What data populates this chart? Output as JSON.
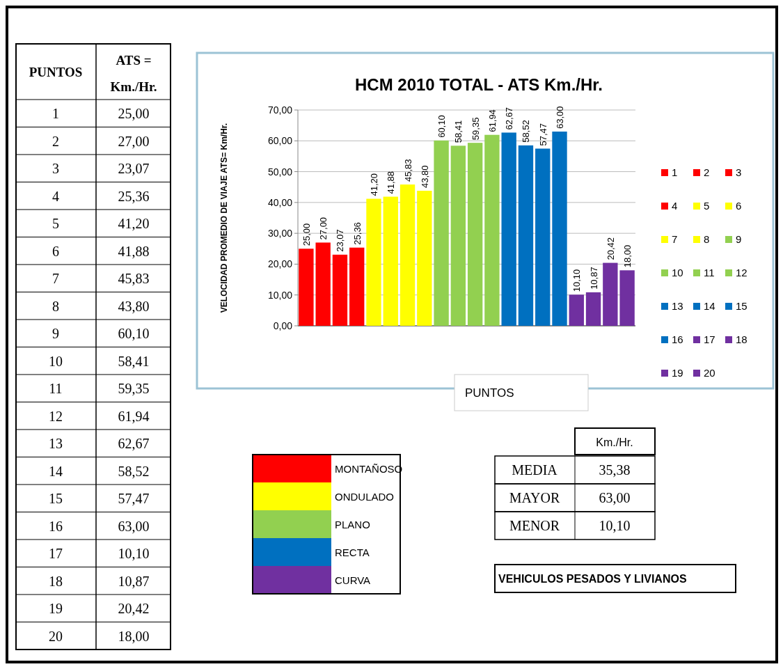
{
  "chart_data": {
    "type": "bar",
    "title": "HCM 2010  TOTAL - ATS  Km./Hr.",
    "xlabel": "PUNTOS",
    "ylabel": "VELOCIDAD PROMEDIO DE VIAJE ATS= Km/Hr.",
    "categories": [
      null,
      null,
      null,
      null,
      null,
      null,
      null,
      null,
      null,
      null,
      null,
      null,
      null,
      null,
      null,
      null,
      null,
      null,
      null,
      null
    ],
    "series": [
      {
        "name": "1",
        "color": "#ff0000",
        "values": [
          25,
          null,
          null,
          null,
          null,
          null,
          null,
          null,
          null,
          null,
          null,
          null,
          null,
          null,
          null,
          null,
          null,
          null,
          null,
          null
        ],
        "value_labels": [
          "25,00",
          null,
          null,
          null,
          null,
          null,
          null,
          null,
          null,
          null,
          null,
          null,
          null,
          null,
          null,
          null,
          null,
          null,
          null,
          null
        ]
      },
      {
        "name": "2",
        "color": "#ff0000",
        "values": [
          null,
          27,
          null,
          null,
          null,
          null,
          null,
          null,
          null,
          null,
          null,
          null,
          null,
          null,
          null,
          null,
          null,
          null,
          null,
          null
        ],
        "value_labels": [
          null,
          "27,00",
          null,
          null,
          null,
          null,
          null,
          null,
          null,
          null,
          null,
          null,
          null,
          null,
          null,
          null,
          null,
          null,
          null,
          null
        ]
      },
      {
        "name": "3",
        "color": "#ff0000",
        "values": [
          null,
          null,
          23.07,
          null,
          null,
          null,
          null,
          null,
          null,
          null,
          null,
          null,
          null,
          null,
          null,
          null,
          null,
          null,
          null,
          null
        ],
        "value_labels": [
          null,
          null,
          "23,07",
          null,
          null,
          null,
          null,
          null,
          null,
          null,
          null,
          null,
          null,
          null,
          null,
          null,
          null,
          null,
          null,
          null
        ]
      },
      {
        "name": "4",
        "color": "#ff0000",
        "values": [
          null,
          null,
          null,
          25.36,
          null,
          null,
          null,
          null,
          null,
          null,
          null,
          null,
          null,
          null,
          null,
          null,
          null,
          null,
          null,
          null
        ],
        "value_labels": [
          null,
          null,
          null,
          "25,36",
          null,
          null,
          null,
          null,
          null,
          null,
          null,
          null,
          null,
          null,
          null,
          null,
          null,
          null,
          null,
          null
        ]
      },
      {
        "name": "5",
        "color": "#ffff00",
        "values": [
          null,
          null,
          null,
          null,
          41.2,
          null,
          null,
          null,
          null,
          null,
          null,
          null,
          null,
          null,
          null,
          null,
          null,
          null,
          null,
          null
        ],
        "value_labels": [
          null,
          null,
          null,
          null,
          "41,20",
          null,
          null,
          null,
          null,
          null,
          null,
          null,
          null,
          null,
          null,
          null,
          null,
          null,
          null,
          null
        ]
      },
      {
        "name": "6",
        "color": "#ffff00",
        "values": [
          null,
          null,
          null,
          null,
          null,
          41.88,
          null,
          null,
          null,
          null,
          null,
          null,
          null,
          null,
          null,
          null,
          null,
          null,
          null,
          null
        ],
        "value_labels": [
          null,
          null,
          null,
          null,
          null,
          "41,88",
          null,
          null,
          null,
          null,
          null,
          null,
          null,
          null,
          null,
          null,
          null,
          null,
          null,
          null
        ]
      },
      {
        "name": "7",
        "color": "#ffff00",
        "values": [
          null,
          null,
          null,
          null,
          null,
          null,
          45.83,
          null,
          null,
          null,
          null,
          null,
          null,
          null,
          null,
          null,
          null,
          null,
          null,
          null
        ],
        "value_labels": [
          null,
          null,
          null,
          null,
          null,
          null,
          "45,83",
          null,
          null,
          null,
          null,
          null,
          null,
          null,
          null,
          null,
          null,
          null,
          null,
          null
        ]
      },
      {
        "name": "8",
        "color": "#ffff00",
        "values": [
          null,
          null,
          null,
          null,
          null,
          null,
          null,
          43.8,
          null,
          null,
          null,
          null,
          null,
          null,
          null,
          null,
          null,
          null,
          null,
          null
        ],
        "value_labels": [
          null,
          null,
          null,
          null,
          null,
          null,
          null,
          "43,80",
          null,
          null,
          null,
          null,
          null,
          null,
          null,
          null,
          null,
          null,
          null,
          null
        ]
      },
      {
        "name": "9",
        "color": "#92d050",
        "values": [
          null,
          null,
          null,
          null,
          null,
          null,
          null,
          null,
          60.1,
          null,
          null,
          null,
          null,
          null,
          null,
          null,
          null,
          null,
          null,
          null
        ],
        "value_labels": [
          null,
          null,
          null,
          null,
          null,
          null,
          null,
          null,
          "60,10",
          null,
          null,
          null,
          null,
          null,
          null,
          null,
          null,
          null,
          null,
          null
        ]
      },
      {
        "name": "10",
        "color": "#92d050",
        "values": [
          null,
          null,
          null,
          null,
          null,
          null,
          null,
          null,
          null,
          58.41,
          null,
          null,
          null,
          null,
          null,
          null,
          null,
          null,
          null,
          null
        ],
        "value_labels": [
          null,
          null,
          null,
          null,
          null,
          null,
          null,
          null,
          null,
          "58,41",
          null,
          null,
          null,
          null,
          null,
          null,
          null,
          null,
          null,
          null
        ]
      },
      {
        "name": "11",
        "color": "#92d050",
        "values": [
          null,
          null,
          null,
          null,
          null,
          null,
          null,
          null,
          null,
          null,
          59.35,
          null,
          null,
          null,
          null,
          null,
          null,
          null,
          null,
          null
        ],
        "value_labels": [
          null,
          null,
          null,
          null,
          null,
          null,
          null,
          null,
          null,
          null,
          "59,35",
          null,
          null,
          null,
          null,
          null,
          null,
          null,
          null,
          null
        ]
      },
      {
        "name": "12",
        "color": "#92d050",
        "values": [
          null,
          null,
          null,
          null,
          null,
          null,
          null,
          null,
          null,
          null,
          null,
          61.94,
          null,
          null,
          null,
          null,
          null,
          null,
          null,
          null
        ],
        "value_labels": [
          null,
          null,
          null,
          null,
          null,
          null,
          null,
          null,
          null,
          null,
          null,
          "61,94",
          null,
          null,
          null,
          null,
          null,
          null,
          null,
          null
        ]
      },
      {
        "name": "13",
        "color": "#0070c0",
        "values": [
          null,
          null,
          null,
          null,
          null,
          null,
          null,
          null,
          null,
          null,
          null,
          null,
          62.67,
          null,
          null,
          null,
          null,
          null,
          null,
          null
        ],
        "value_labels": [
          null,
          null,
          null,
          null,
          null,
          null,
          null,
          null,
          null,
          null,
          null,
          null,
          "62,67",
          null,
          null,
          null,
          null,
          null,
          null,
          null
        ]
      },
      {
        "name": "14",
        "color": "#0070c0",
        "values": [
          null,
          null,
          null,
          null,
          null,
          null,
          null,
          null,
          null,
          null,
          null,
          null,
          null,
          58.52,
          null,
          null,
          null,
          null,
          null,
          null
        ],
        "value_labels": [
          null,
          null,
          null,
          null,
          null,
          null,
          null,
          null,
          null,
          null,
          null,
          null,
          null,
          "58,52",
          null,
          null,
          null,
          null,
          null,
          null
        ]
      },
      {
        "name": "15",
        "color": "#0070c0",
        "values": [
          null,
          null,
          null,
          null,
          null,
          null,
          null,
          null,
          null,
          null,
          null,
          null,
          null,
          null,
          57.47,
          null,
          null,
          null,
          null,
          null
        ],
        "value_labels": [
          null,
          null,
          null,
          null,
          null,
          null,
          null,
          null,
          null,
          null,
          null,
          null,
          null,
          null,
          "57,47",
          null,
          null,
          null,
          null,
          null
        ]
      },
      {
        "name": "16",
        "color": "#0070c0",
        "values": [
          null,
          null,
          null,
          null,
          null,
          null,
          null,
          null,
          null,
          null,
          null,
          null,
          null,
          null,
          null,
          63,
          null,
          null,
          null,
          null
        ],
        "value_labels": [
          null,
          null,
          null,
          null,
          null,
          null,
          null,
          null,
          null,
          null,
          null,
          null,
          null,
          null,
          null,
          "63,00",
          null,
          null,
          null,
          null
        ]
      },
      {
        "name": "17",
        "color": "#7030a0",
        "values": [
          null,
          null,
          null,
          null,
          null,
          null,
          null,
          null,
          null,
          null,
          null,
          null,
          null,
          null,
          null,
          null,
          10.1,
          null,
          null,
          null
        ],
        "value_labels": [
          null,
          null,
          null,
          null,
          null,
          null,
          null,
          null,
          null,
          null,
          null,
          null,
          null,
          null,
          null,
          null,
          "10,10",
          null,
          null,
          null
        ]
      },
      {
        "name": "18",
        "color": "#7030a0",
        "values": [
          null,
          null,
          null,
          null,
          null,
          null,
          null,
          null,
          null,
          null,
          null,
          null,
          null,
          null,
          null,
          null,
          null,
          10.87,
          null,
          null
        ],
        "value_labels": [
          null,
          null,
          null,
          null,
          null,
          null,
          null,
          null,
          null,
          null,
          null,
          null,
          null,
          null,
          null,
          null,
          null,
          "10,87",
          null,
          null
        ]
      },
      {
        "name": "19",
        "color": "#7030a0",
        "values": [
          null,
          null,
          null,
          null,
          null,
          null,
          null,
          null,
          null,
          null,
          null,
          null,
          null,
          null,
          null,
          null,
          null,
          null,
          20.42,
          null
        ],
        "value_labels": [
          null,
          null,
          null,
          null,
          null,
          null,
          null,
          null,
          null,
          null,
          null,
          null,
          null,
          null,
          null,
          null,
          null,
          null,
          "20,42",
          null
        ]
      },
      {
        "name": "20",
        "color": "#7030a0",
        "values": [
          null,
          null,
          null,
          null,
          null,
          null,
          null,
          null,
          null,
          null,
          null,
          null,
          null,
          null,
          null,
          null,
          null,
          null,
          null,
          18
        ],
        "value_labels": [
          null,
          null,
          null,
          null,
          null,
          null,
          null,
          null,
          null,
          null,
          null,
          null,
          null,
          null,
          null,
          null,
          null,
          null,
          null,
          "18,00"
        ]
      }
    ],
    "ylim": [
      0,
      70
    ],
    "yticks": [
      {
        "value": 0,
        "label": "0,00"
      },
      {
        "value": 10,
        "label": "10,00"
      },
      {
        "value": 20,
        "label": "20,00"
      },
      {
        "value": 30,
        "label": "30,00"
      },
      {
        "value": 40,
        "label": "40,00"
      },
      {
        "value": 50,
        "label": "50,00"
      },
      {
        "value": 60,
        "label": "60,00"
      },
      {
        "value": 70,
        "label": "70,00"
      }
    ],
    "grid": "y",
    "legend": "right",
    "annotations": [
      "PUNTOS",
      "ATS =",
      "Km./Hr.",
      "MONTAÑOSO",
      "ONDULADO",
      "PLANO",
      "RECTA",
      "CURVA",
      "Km./Hr.",
      "MEDIA",
      "35,38",
      "MAYOR",
      "63,00",
      "MENOR",
      "10,10",
      "VEHICULOS PESADOS Y LIVIANOS"
    ]
  }
}
